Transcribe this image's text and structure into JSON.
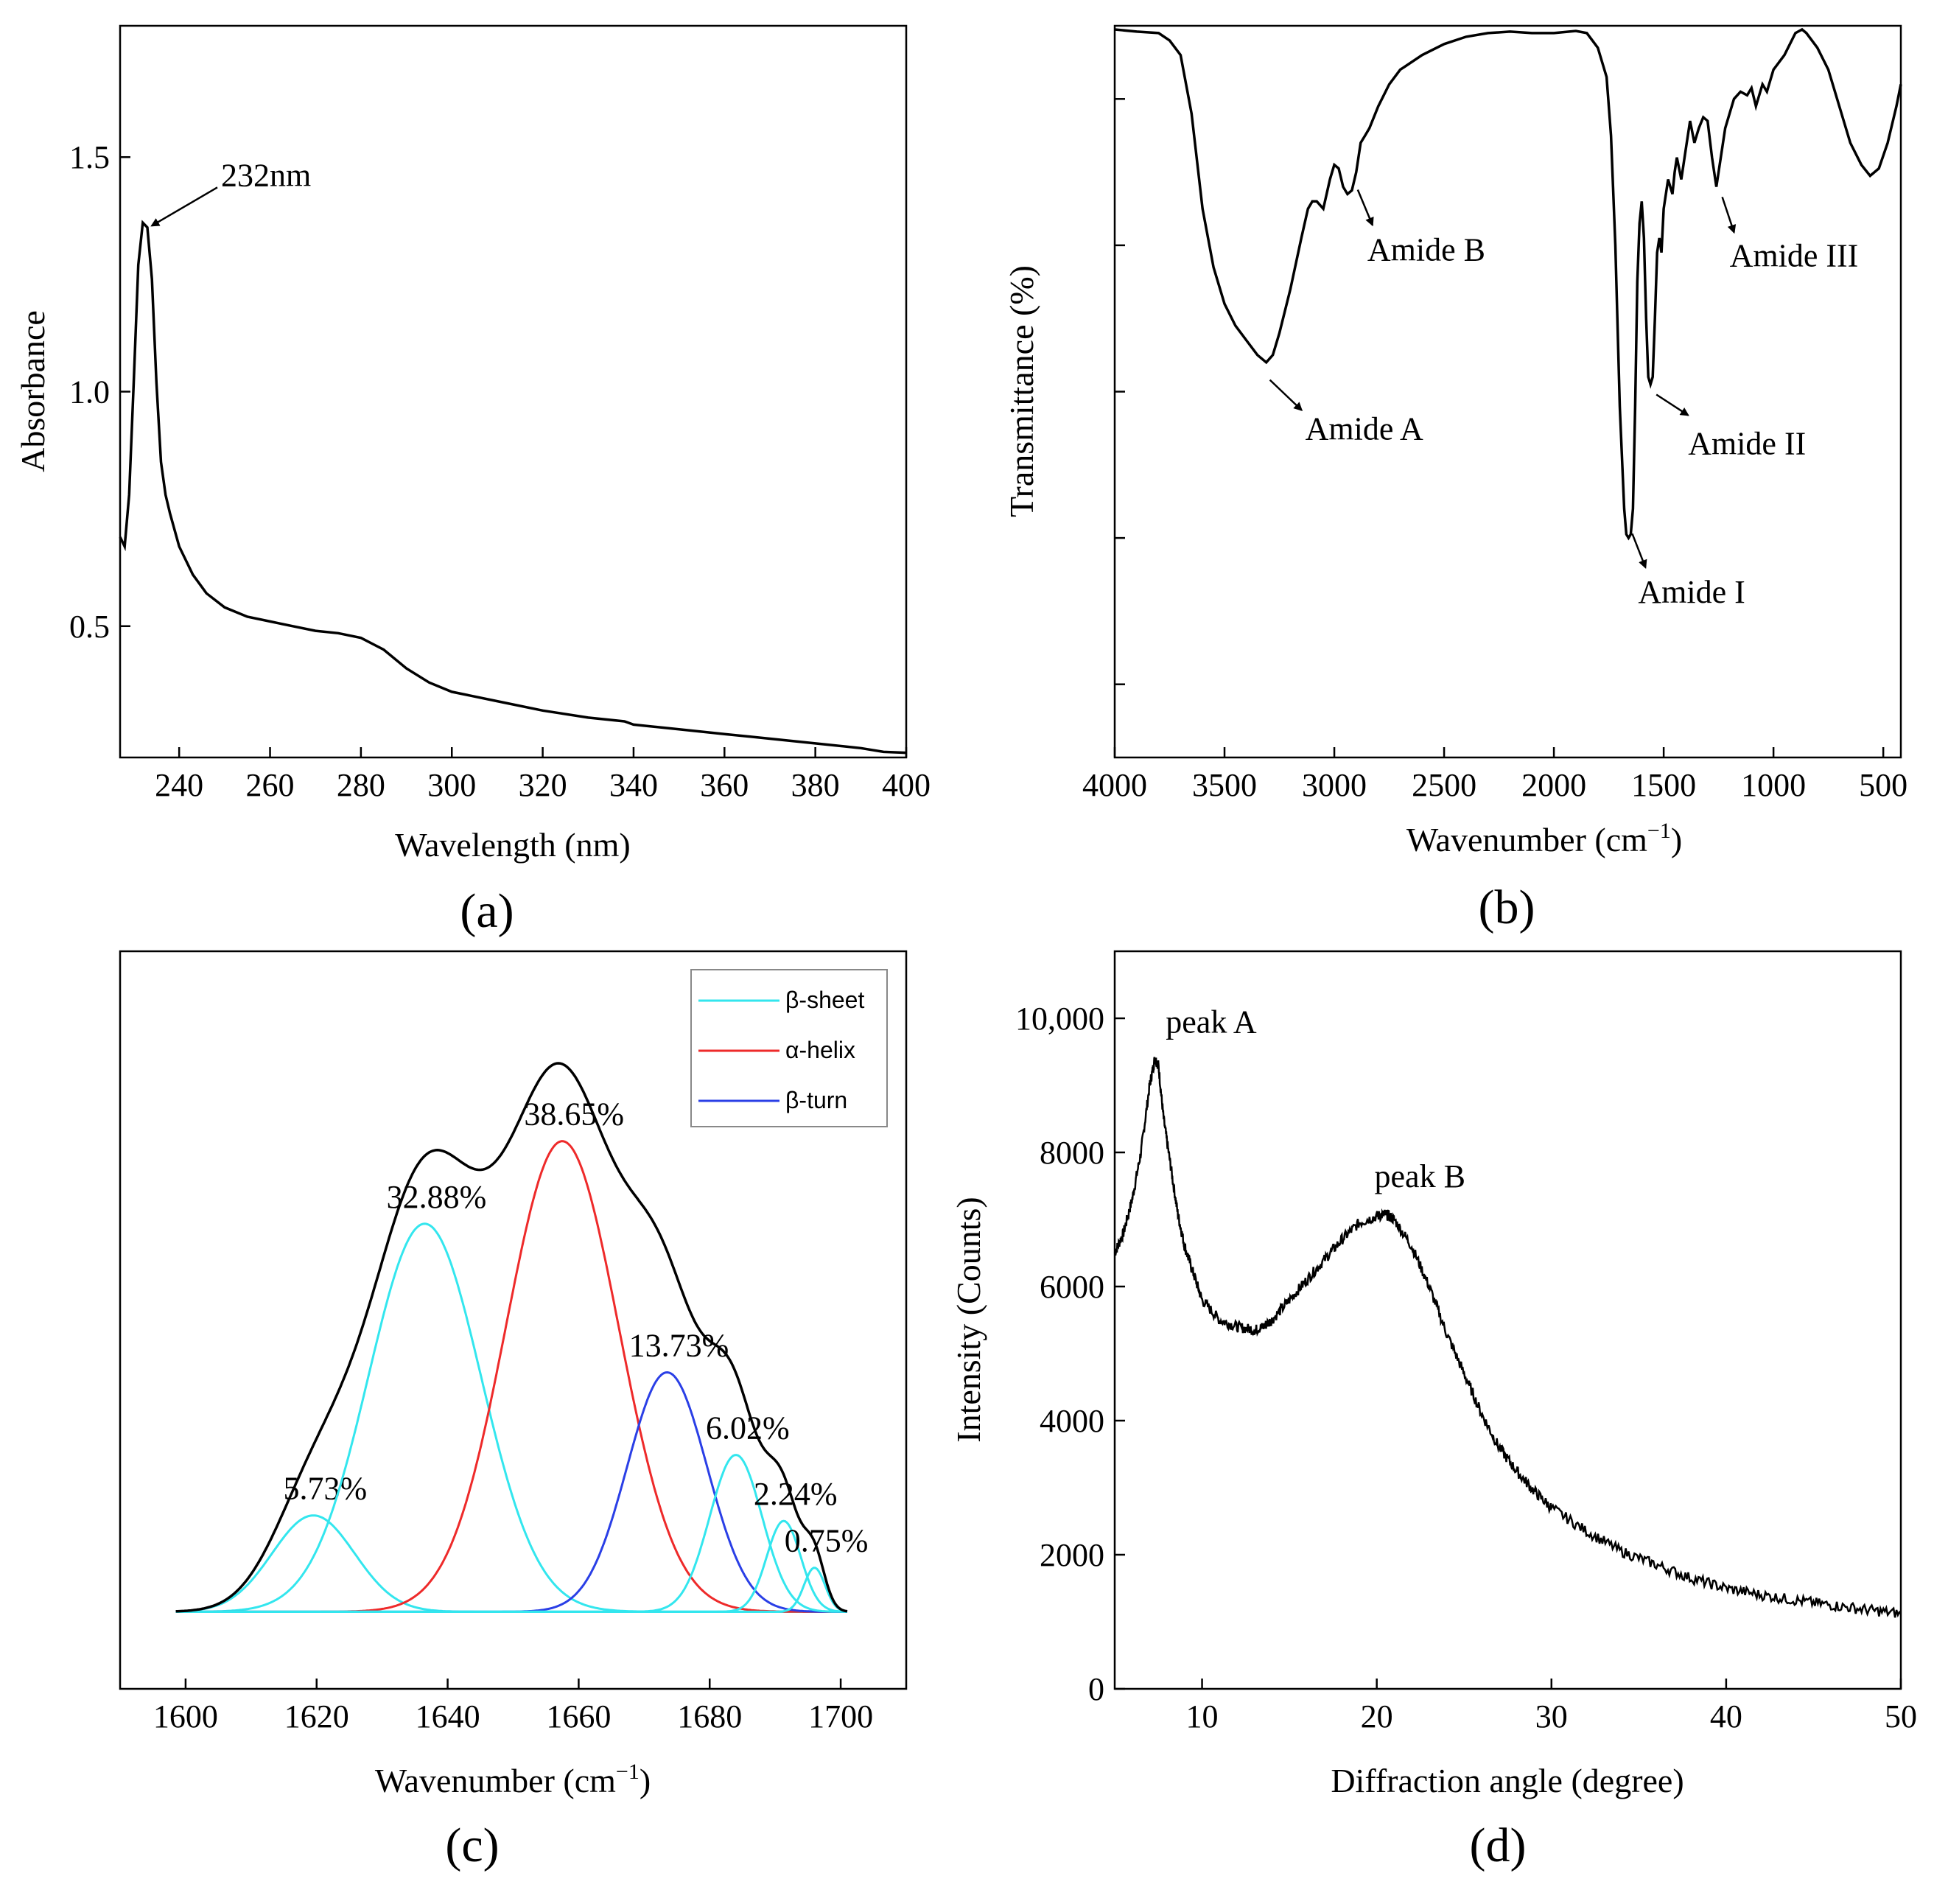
{
  "chart_data": [
    {
      "panel": "(a)",
      "type": "line",
      "xlabel": "Wavelength (nm)",
      "ylabel": "Absorbance",
      "xlim": [
        227,
        400
      ],
      "ylim": [
        0.22,
        1.78
      ],
      "xticks": [
        240,
        260,
        280,
        300,
        320,
        340,
        360,
        380,
        400
      ],
      "yticks": [
        0.5,
        1.0,
        1.5
      ],
      "ytick_labels": [
        "0.5",
        "1.0",
        "1.5"
      ],
      "annotations": [
        {
          "text": "232nm",
          "x": 233,
          "y": 1.36
        }
      ],
      "series": [
        {
          "name": "UV absorbance",
          "x": [
            227,
            228,
            229,
            230,
            231,
            232,
            233,
            234,
            235,
            236,
            237,
            238,
            240,
            243,
            246,
            250,
            255,
            260,
            265,
            270,
            275,
            280,
            285,
            290,
            295,
            300,
            310,
            320,
            330,
            338,
            340,
            350,
            360,
            370,
            380,
            390,
            395,
            400
          ],
          "y": [
            0.69,
            0.67,
            0.78,
            1.02,
            1.27,
            1.36,
            1.35,
            1.24,
            1.02,
            0.85,
            0.78,
            0.74,
            0.67,
            0.61,
            0.57,
            0.54,
            0.52,
            0.51,
            0.5,
            0.49,
            0.485,
            0.475,
            0.45,
            0.41,
            0.38,
            0.36,
            0.34,
            0.32,
            0.305,
            0.297,
            0.29,
            0.28,
            0.27,
            0.26,
            0.25,
            0.24,
            0.232,
            0.23
          ]
        }
      ]
    },
    {
      "panel": "(b)",
      "type": "line",
      "xlabel": "Wavenumber (cm",
      "xlabel_sup": "−1",
      "ylabel": "Transmittance (%)",
      "xlim": [
        4000,
        420
      ],
      "ylim": [
        0,
        100
      ],
      "xticks": [
        4000,
        3500,
        3000,
        2500,
        2000,
        1500,
        1000,
        500
      ],
      "yticks": [
        10,
        30,
        50,
        70,
        90
      ],
      "annotations": [
        {
          "text": "Amide A",
          "x": 3300,
          "y": 52
        },
        {
          "text": "Amide B",
          "x": 2900,
          "y": 78
        },
        {
          "text": "Amide I",
          "x": 1650,
          "y": 31
        },
        {
          "text": "Amide II",
          "x": 1540,
          "y": 50
        },
        {
          "text": "Amide III",
          "x": 1240,
          "y": 77
        }
      ],
      "series": [
        {
          "name": "FTIR spectrum",
          "x": [
            4000,
            3900,
            3800,
            3750,
            3700,
            3650,
            3600,
            3550,
            3500,
            3450,
            3400,
            3350,
            3310,
            3280,
            3250,
            3200,
            3150,
            3120,
            3100,
            3080,
            3050,
            3020,
            3000,
            2980,
            2960,
            2940,
            2920,
            2900,
            2880,
            2860,
            2840,
            2800,
            2750,
            2700,
            2600,
            2500,
            2400,
            2300,
            2200,
            2100,
            2000,
            1900,
            1850,
            1800,
            1760,
            1740,
            1720,
            1700,
            1680,
            1670,
            1660,
            1650,
            1640,
            1630,
            1620,
            1610,
            1600,
            1590,
            1580,
            1570,
            1560,
            1550,
            1540,
            1530,
            1520,
            1510,
            1500,
            1480,
            1460,
            1450,
            1440,
            1420,
            1400,
            1380,
            1360,
            1340,
            1320,
            1300,
            1280,
            1260,
            1240,
            1220,
            1200,
            1180,
            1150,
            1120,
            1100,
            1080,
            1050,
            1030,
            1000,
            950,
            900,
            870,
            850,
            800,
            750,
            700,
            650,
            600,
            560,
            520,
            480,
            440,
            420
          ],
          "y": [
            99.5,
            99.2,
            99,
            98,
            96,
            88,
            75,
            67,
            62,
            59,
            57,
            55,
            54,
            55,
            58,
            64,
            71,
            75,
            76,
            76,
            75,
            79,
            81,
            80.5,
            78,
            77,
            77.5,
            80,
            84,
            85,
            86,
            89,
            92,
            94,
            96,
            97.5,
            98.5,
            99,
            99.2,
            99,
            99,
            99.3,
            99,
            97,
            93,
            85,
            70,
            48,
            34,
            30.5,
            30,
            30.5,
            34,
            48,
            65,
            73,
            76,
            71,
            60,
            52,
            51,
            52,
            60,
            69,
            71,
            69,
            75,
            79,
            77,
            80,
            82,
            79,
            83,
            87,
            84,
            86,
            87.5,
            87,
            82,
            78,
            82,
            86,
            88,
            90,
            91,
            90.5,
            91.5,
            89,
            92,
            91,
            94,
            96,
            99,
            99.5,
            99,
            97,
            94,
            89,
            84,
            81,
            79.5,
            80.5,
            84,
            89,
            92
          ]
        }
      ]
    },
    {
      "panel": "(c)",
      "type": "line",
      "xlabel": "Wavenumber (cm",
      "xlabel_sup": "−1",
      "xlim": [
        1590,
        1710
      ],
      "ylim": [
        -14,
        120
      ],
      "xticks": [
        1600,
        1620,
        1640,
        1660,
        1680,
        1700
      ],
      "legend": {
        "position": "top-right",
        "entries": [
          {
            "label": "β-sheet",
            "color": "#33e6ee"
          },
          {
            "label": "α-helix",
            "color": "#ee2a2a"
          },
          {
            "label": "β-turn",
            "color": "#2a3fe6"
          }
        ]
      },
      "envelope_color": "#000000",
      "components": [
        {
          "type": "β-sheet",
          "center": 1619.5,
          "height": 17.5,
          "sigma": 6.3,
          "label": "5.73%"
        },
        {
          "type": "β-sheet",
          "center": 1636.5,
          "height": 70.5,
          "sigma": 8.6,
          "label": "32.88%"
        },
        {
          "type": "α-helix",
          "center": 1657.5,
          "height": 85.5,
          "sigma": 8.6,
          "label": "38.65%"
        },
        {
          "type": "β-turn",
          "center": 1673.5,
          "height": 43.5,
          "sigma": 6.1,
          "label": "13.73%"
        },
        {
          "type": "β-sheet",
          "center": 1684.0,
          "height": 28.5,
          "sigma": 4.0,
          "label": "6.02%"
        },
        {
          "type": "β-sheet",
          "center": 1691.3,
          "height": 16.5,
          "sigma": 2.6,
          "label": "2.24%"
        },
        {
          "type": "β-sheet",
          "center": 1696.0,
          "height": 8.0,
          "sigma": 1.6,
          "label": "0.75%"
        }
      ]
    },
    {
      "panel": "(d)",
      "type": "line",
      "xlabel": "Diffraction angle (degree)",
      "ylabel": "Intensity (Counts)",
      "xlim": [
        5,
        50
      ],
      "ylim": [
        0,
        11000
      ],
      "xticks": [
        10,
        20,
        30,
        40,
        50
      ],
      "yticks": [
        0,
        2000,
        4000,
        6000,
        8000,
        10000
      ],
      "ytick_labels": [
        "0",
        "2000",
        "4000",
        "6000",
        "8000",
        "10,000"
      ],
      "annotations": [
        {
          "text": "peak A",
          "x": 7.5,
          "y": 9400
        },
        {
          "text": "peak B",
          "x": 20.5,
          "y": 7100
        }
      ],
      "series": [
        {
          "name": "XRD pattern",
          "x": [
            5,
            5.5,
            6,
            6.5,
            7,
            7.3,
            7.5,
            7.8,
            8.2,
            8.6,
            9,
            9.5,
            10,
            11,
            12,
            13,
            13.5,
            14,
            15,
            16,
            17,
            18,
            19,
            20,
            20.5,
            21,
            22,
            23,
            24,
            25,
            26,
            27,
            28,
            29,
            30,
            32,
            34,
            36,
            38,
            40,
            42,
            44,
            46,
            48,
            50
          ],
          "y": [
            6500,
            6800,
            7300,
            8000,
            9000,
            9400,
            9300,
            8500,
            7800,
            7100,
            6600,
            6200,
            5800,
            5500,
            5400,
            5350,
            5400,
            5500,
            5800,
            6100,
            6400,
            6700,
            6950,
            7050,
            7080,
            7000,
            6600,
            6000,
            5300,
            4700,
            4100,
            3600,
            3250,
            2950,
            2700,
            2350,
            2050,
            1850,
            1650,
            1500,
            1400,
            1320,
            1250,
            1180,
            1120
          ]
        }
      ]
    }
  ],
  "panel_labels": {
    "a": "(a)",
    "b": "(b)",
    "c": "(c)",
    "d": "(d)"
  }
}
